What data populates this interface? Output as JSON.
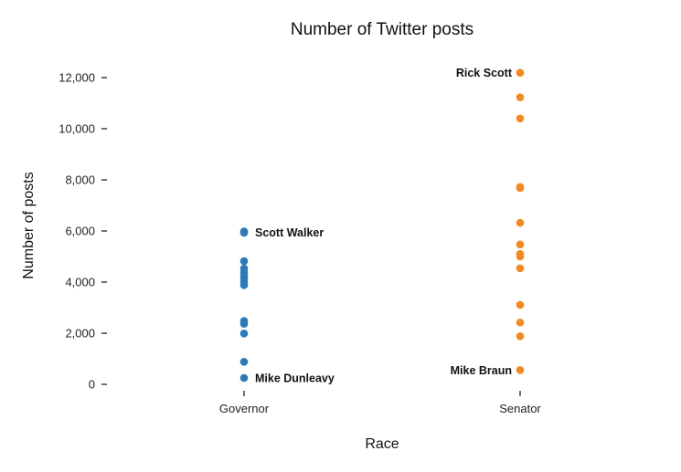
{
  "chart_data": {
    "type": "scatter",
    "title": "Number of Twitter posts",
    "xlabel": "Race",
    "ylabel": "Number of posts",
    "categories": [
      "Governor",
      "Senator"
    ],
    "ylim": [
      0,
      12500
    ],
    "yticks": [
      0,
      2000,
      4000,
      6000,
      8000,
      10000,
      12000
    ],
    "ytick_labels": [
      "0",
      "2,000",
      "4,000",
      "6,000",
      "8,000",
      "10,000",
      "12,000"
    ],
    "grid": false,
    "colors": {
      "Governor": "#2b7bba",
      "Senator": "#f28a22"
    },
    "series": [
      {
        "category": "Governor",
        "values": [
          5980,
          5930,
          4820,
          4530,
          4380,
          4230,
          4120,
          3990,
          3880,
          2480,
          2370,
          1990,
          880,
          250
        ]
      },
      {
        "category": "Senator",
        "values": [
          12190,
          11230,
          10400,
          7720,
          7680,
          6320,
          5470,
          5100,
          5000,
          4540,
          3110,
          2420,
          1880,
          560
        ]
      }
    ],
    "annotations": [
      {
        "text": "Scott Walker",
        "category": "Governor",
        "y": 5950,
        "side": "right"
      },
      {
        "text": "Mike Dunleavy",
        "category": "Governor",
        "y": 250,
        "side": "right"
      },
      {
        "text": "Rick Scott",
        "category": "Senator",
        "y": 12190,
        "side": "left"
      },
      {
        "text": "Mike Braun",
        "category": "Senator",
        "y": 560,
        "side": "left"
      }
    ]
  }
}
